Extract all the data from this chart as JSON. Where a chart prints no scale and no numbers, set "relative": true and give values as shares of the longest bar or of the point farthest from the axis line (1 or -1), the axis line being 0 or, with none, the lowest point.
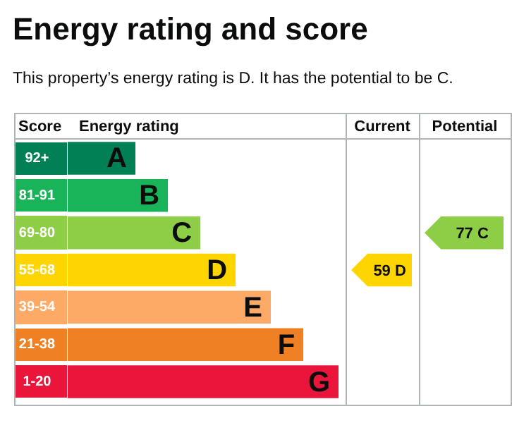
{
  "chart_data": {
    "type": "bar",
    "orientation": "horizontal",
    "relative": true,
    "title": "Energy rating and score",
    "subtitle": "This property’s energy rating is D. It has the potential to be C.",
    "ylabel": "Score",
    "xlabel": "Energy rating",
    "categories": [
      "92+",
      "81-91",
      "69-80",
      "55-68",
      "39-54",
      "21-38",
      "1-20"
    ],
    "values": [
      0.25,
      0.37,
      0.49,
      0.62,
      0.75,
      0.87,
      1
    ],
    "colors": [
      "#008054",
      "#19b459",
      "#8dce46",
      "#ffd500",
      "#fcaa65",
      "#ef8023",
      "#e9153b"
    ],
    "annotations": [
      "Current",
      "Potential",
      "59 D",
      "77 C",
      {
        "text": "A",
        "x": 0.25,
        "y": "92+"
      },
      {
        "text": "B",
        "x": 0.37,
        "y": "81-91"
      },
      {
        "text": "C",
        "x": 0.49,
        "y": "69-80"
      },
      {
        "text": "D",
        "x": 0.62,
        "y": "55-68"
      },
      {
        "text": "E",
        "x": 0.75,
        "y": "39-54"
      },
      {
        "text": "F",
        "x": 0.87,
        "y": "21-38"
      },
      {
        "text": "G",
        "x": 1,
        "y": "1-20"
      }
    ],
    "legend": false
  }
}
